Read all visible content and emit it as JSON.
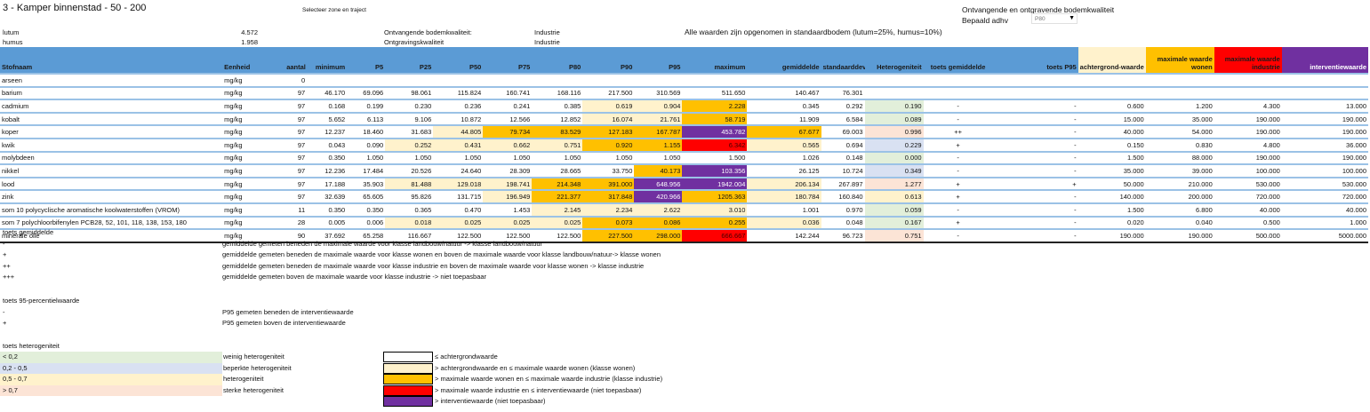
{
  "title": "3 - Kamper binnenstad - 50 - 200",
  "select_label": "Selecteer zone en traject",
  "params": [
    {
      "label": "lutum",
      "value": "4.572"
    },
    {
      "label": "humus",
      "value": "1.958"
    }
  ],
  "quality": [
    {
      "label": "Ontvangende bodemkwaliteit:",
      "value": "Industrie"
    },
    {
      "label": "Ontgravingskwaliteit",
      "value": "Industrie"
    }
  ],
  "note": "Alle waarden zijn opgenomen in standaardbodem (lutum=25%, humus=10%)",
  "right_header": {
    "title": "Ontvangende en ontgravende bodemkwaliteit",
    "bepaald_label": "Bepaald adhv",
    "dropdown_value": "P80"
  },
  "colors": {
    "header": "#5b9bd5",
    "light": "#fff2cc",
    "orange": "#ffc000",
    "red": "#ff0000",
    "purple": "#7030a0"
  },
  "columns": [
    "Stofnaam",
    "Eenheid",
    "aantal",
    "minimum",
    "P5",
    "P25",
    "P50",
    "P75",
    "P80",
    "P90",
    "P95",
    "maximum",
    "gemiddelde",
    "standaarddeviatie",
    "Heterogeniteit",
    "toets gemiddelde",
    "toets P95",
    "achtergrond-waarde",
    "maximale waarde wonen",
    "maximale waarde industrie",
    "interventiewaarde"
  ],
  "rows": [
    {
      "name": "arseen",
      "unit": "mg/kg",
      "n": "0",
      "vals": [
        "",
        "",
        "",
        "",
        "",
        "",
        "",
        "",
        "",
        "",
        "",
        ""
      ],
      "cls": "wwwwwwwwww",
      "het": "",
      "hc": "",
      "tg": "",
      "tp": "",
      "ach": "",
      "won": "",
      "ind": "",
      "int": ""
    },
    {
      "name": "barium",
      "unit": "mg/kg",
      "n": "97",
      "vals": [
        "46.170",
        "69.096",
        "98.061",
        "115.824",
        "160.741",
        "168.116",
        "217.500",
        "310.569",
        "511.650",
        "140.467",
        "76.301"
      ],
      "cls": "wwwwwwwwww",
      "het": "",
      "hc": "",
      "tg": "",
      "tp": "",
      "ach": "",
      "won": "",
      "ind": "",
      "int": ""
    },
    {
      "name": "cadmium",
      "unit": "mg/kg",
      "n": "97",
      "vals": [
        "0.168",
        "0.199",
        "0.230",
        "0.236",
        "0.241",
        "0.385",
        "0.619",
        "0.904",
        "2.228",
        "0.345",
        "0.292"
      ],
      "cls": "wwwwwwllow",
      "het": "0.190",
      "hc": "g",
      "tg": "-",
      "tp": "-",
      "ach": "0.600",
      "won": "1.200",
      "ind": "4.300",
      "int": "13.000"
    },
    {
      "name": "kobalt",
      "unit": "mg/kg",
      "n": "97",
      "vals": [
        "5.652",
        "6.113",
        "9.106",
        "10.872",
        "12.566",
        "12.852",
        "16.074",
        "21.761",
        "58.719",
        "11.909",
        "6.584"
      ],
      "cls": "wwwwwwllow",
      "het": "0.089",
      "hc": "g",
      "tg": "-",
      "tp": "-",
      "ach": "15.000",
      "won": "35.000",
      "ind": "190.000",
      "int": "190.000"
    },
    {
      "name": "koper",
      "unit": "mg/kg",
      "n": "97",
      "vals": [
        "12.237",
        "18.460",
        "31.683",
        "44.805",
        "79.734",
        "83.529",
        "127.183",
        "167.787",
        "453.782",
        "67.677",
        "69.003"
      ],
      "cls": "wwwloooopo",
      "het": "0.996",
      "hc": "s",
      "tg": "++",
      "tp": "-",
      "ach": "40.000",
      "won": "54.000",
      "ind": "190.000",
      "int": "190.000"
    },
    {
      "name": "kwik",
      "unit": "mg/kg",
      "n": "97",
      "vals": [
        "0.043",
        "0.090",
        "0.252",
        "0.431",
        "0.662",
        "0.751",
        "0.920",
        "1.155",
        "6.342",
        "0.565",
        "0.694"
      ],
      "cls": "wwlllloorl",
      "het": "0.229",
      "hc": "b",
      "tg": "+",
      "tp": "-",
      "ach": "0.150",
      "won": "0.830",
      "ind": "4.800",
      "int": "36.000"
    },
    {
      "name": "molybdeen",
      "unit": "mg/kg",
      "n": "97",
      "vals": [
        "0.350",
        "1.050",
        "1.050",
        "1.050",
        "1.050",
        "1.050",
        "1.050",
        "1.050",
        "1.500",
        "1.026",
        "0.148"
      ],
      "cls": "wwwwwwwwww",
      "het": "0.000",
      "hc": "g",
      "tg": "-",
      "tp": "-",
      "ach": "1.500",
      "won": "88.000",
      "ind": "190.000",
      "int": "190.000"
    },
    {
      "name": "nikkel",
      "unit": "mg/kg",
      "n": "97",
      "vals": [
        "12.236",
        "17.484",
        "20.526",
        "24.640",
        "28.309",
        "28.665",
        "33.750",
        "40.173",
        "103.356",
        "26.125",
        "10.724"
      ],
      "cls": "wwwwwwwopw",
      "het": "0.349",
      "hc": "b",
      "tg": "-",
      "tp": "-",
      "ach": "35.000",
      "won": "39.000",
      "ind": "100.000",
      "int": "100.000"
    },
    {
      "name": "lood",
      "unit": "mg/kg",
      "n": "97",
      "vals": [
        "17.188",
        "35.903",
        "81.488",
        "129.018",
        "198.741",
        "214.348",
        "391.000",
        "648.956",
        "1942.004",
        "206.134",
        "267.897"
      ],
      "cls": "wwllloopPl",
      "het": "1.277",
      "hc": "s",
      "tg": "+",
      "tp": "+",
      "ach": "50.000",
      "won": "210.000",
      "ind": "530.000",
      "int": "530.000"
    },
    {
      "name": "zink",
      "unit": "mg/kg",
      "n": "97",
      "vals": [
        "32.639",
        "65.605",
        "95.826",
        "131.715",
        "196.949",
        "221.377",
        "317.848",
        "420.966",
        "1205.363",
        "180.784",
        "160.840"
      ],
      "cls": "wwwwloopol",
      "het": "0.613",
      "hc": "y",
      "tg": "+",
      "tp": "-",
      "ach": "140.000",
      "won": "200.000",
      "ind": "720.000",
      "int": "720.000"
    },
    {
      "name": "som 10 polycyclische aromatische koolwaterstoffen (VROM)",
      "unit": "mg/kg",
      "n": "11",
      "vals": [
        "0.350",
        "0.350",
        "0.365",
        "0.470",
        "1.453",
        "2.145",
        "2.234",
        "2.622",
        "3.010",
        "1.001",
        "0.970"
      ],
      "cls": "wwwwwllllw",
      "het": "0.059",
      "hc": "g",
      "tg": "-",
      "tp": "-",
      "ach": "1.500",
      "won": "6.800",
      "ind": "40.000",
      "int": "40.000"
    },
    {
      "name": "som 7 polychloorbifenylen PCB28, 52, 101, 118, 138, 153, 180",
      "unit": "mg/kg",
      "n": "28",
      "vals": [
        "0.005",
        "0.006",
        "0.018",
        "0.025",
        "0.025",
        "0.025",
        "0.073",
        "0.086",
        "0.255",
        "0.036",
        "0.048"
      ],
      "cls": "wwlllloool",
      "het": "0.167",
      "hc": "g",
      "tg": "+",
      "tp": "-",
      "ach": "0.020",
      "won": "0.040",
      "ind": "0.500",
      "int": "1.000"
    },
    {
      "name": "minerale olie",
      "unit": "mg/kg",
      "n": "90",
      "vals": [
        "37.692",
        "65.258",
        "116.667",
        "122.500",
        "122.500",
        "122.500",
        "227.500",
        "298.000",
        "666.667",
        "142.244",
        "96.723"
      ],
      "cls": "wwwwwwoorw",
      "het": "0.751",
      "hc": "s",
      "tg": "-",
      "tp": "-",
      "ach": "190.000",
      "won": "190.000",
      "ind": "500.000",
      "int": "5000.000"
    }
  ],
  "legend": {
    "toets_gem_title": "toets gemiddelde",
    "toets_gem": [
      {
        "sym": "-",
        "text": "gemiddelde gemeten beneden de maximale waarde voor klasse landbouw/natuur -> klasse landbouw/natuur"
      },
      {
        "sym": "+",
        "text": "gemiddelde gemeten beneden de maximale waarde voor klasse wonen en boven de maximale waarde voor klasse landbouw/natuur-> klasse wonen"
      },
      {
        "sym": "++",
        "text": "gemiddelde gemeten beneden de maximale waarde voor klasse industrie en boven de maximale waarde voor klasse wonen -> klasse industrie"
      },
      {
        "sym": "+++",
        "text": "gemiddelde gemeten boven de maximale waarde voor klasse industrie -> niet toepasbaar"
      }
    ],
    "toets_p95_title": "toets 95-percentielwaarde",
    "toets_p95": [
      {
        "sym": "-",
        "text": "P95 gemeten beneden de interventiewaarde"
      },
      {
        "sym": "+",
        "text": "P95 gemeten boven de interventiewaarde"
      }
    ],
    "het_title": "toets heterogeniteit",
    "het": [
      {
        "range": "< 0,2",
        "text": "weinig heterogeniteit",
        "color": "#e2efda"
      },
      {
        "range": "0,2 - 0,5",
        "text": "beperkte heterogeniteit",
        "color": "#d9e1f2"
      },
      {
        "range": "0,5 - 0,7",
        "text": "heterogeniteit",
        "color": "#fff2cc"
      },
      {
        "range": "> 0,7",
        "text": "sterke heterogeniteit",
        "color": "#fce4d6"
      }
    ],
    "classes": [
      {
        "text": "≤ achtergrondwaarde",
        "color": "#ffffff"
      },
      {
        "text": "> achtergrondwaarde en ≤ maximale waarde wonen (klasse wonen)",
        "color": "#fff2cc"
      },
      {
        "text": "> maximale waarde wonen en ≤ maximale waarde industrie (klasse industrie)",
        "color": "#ffc000"
      },
      {
        "text": "> maximale waarde industrie en ≤ interventiewaarde (niet toepasbaar)",
        "color": "#ff0000"
      },
      {
        "text": "> interventiewaarde (niet toepasbaar)",
        "color": "#7030a0"
      }
    ]
  }
}
